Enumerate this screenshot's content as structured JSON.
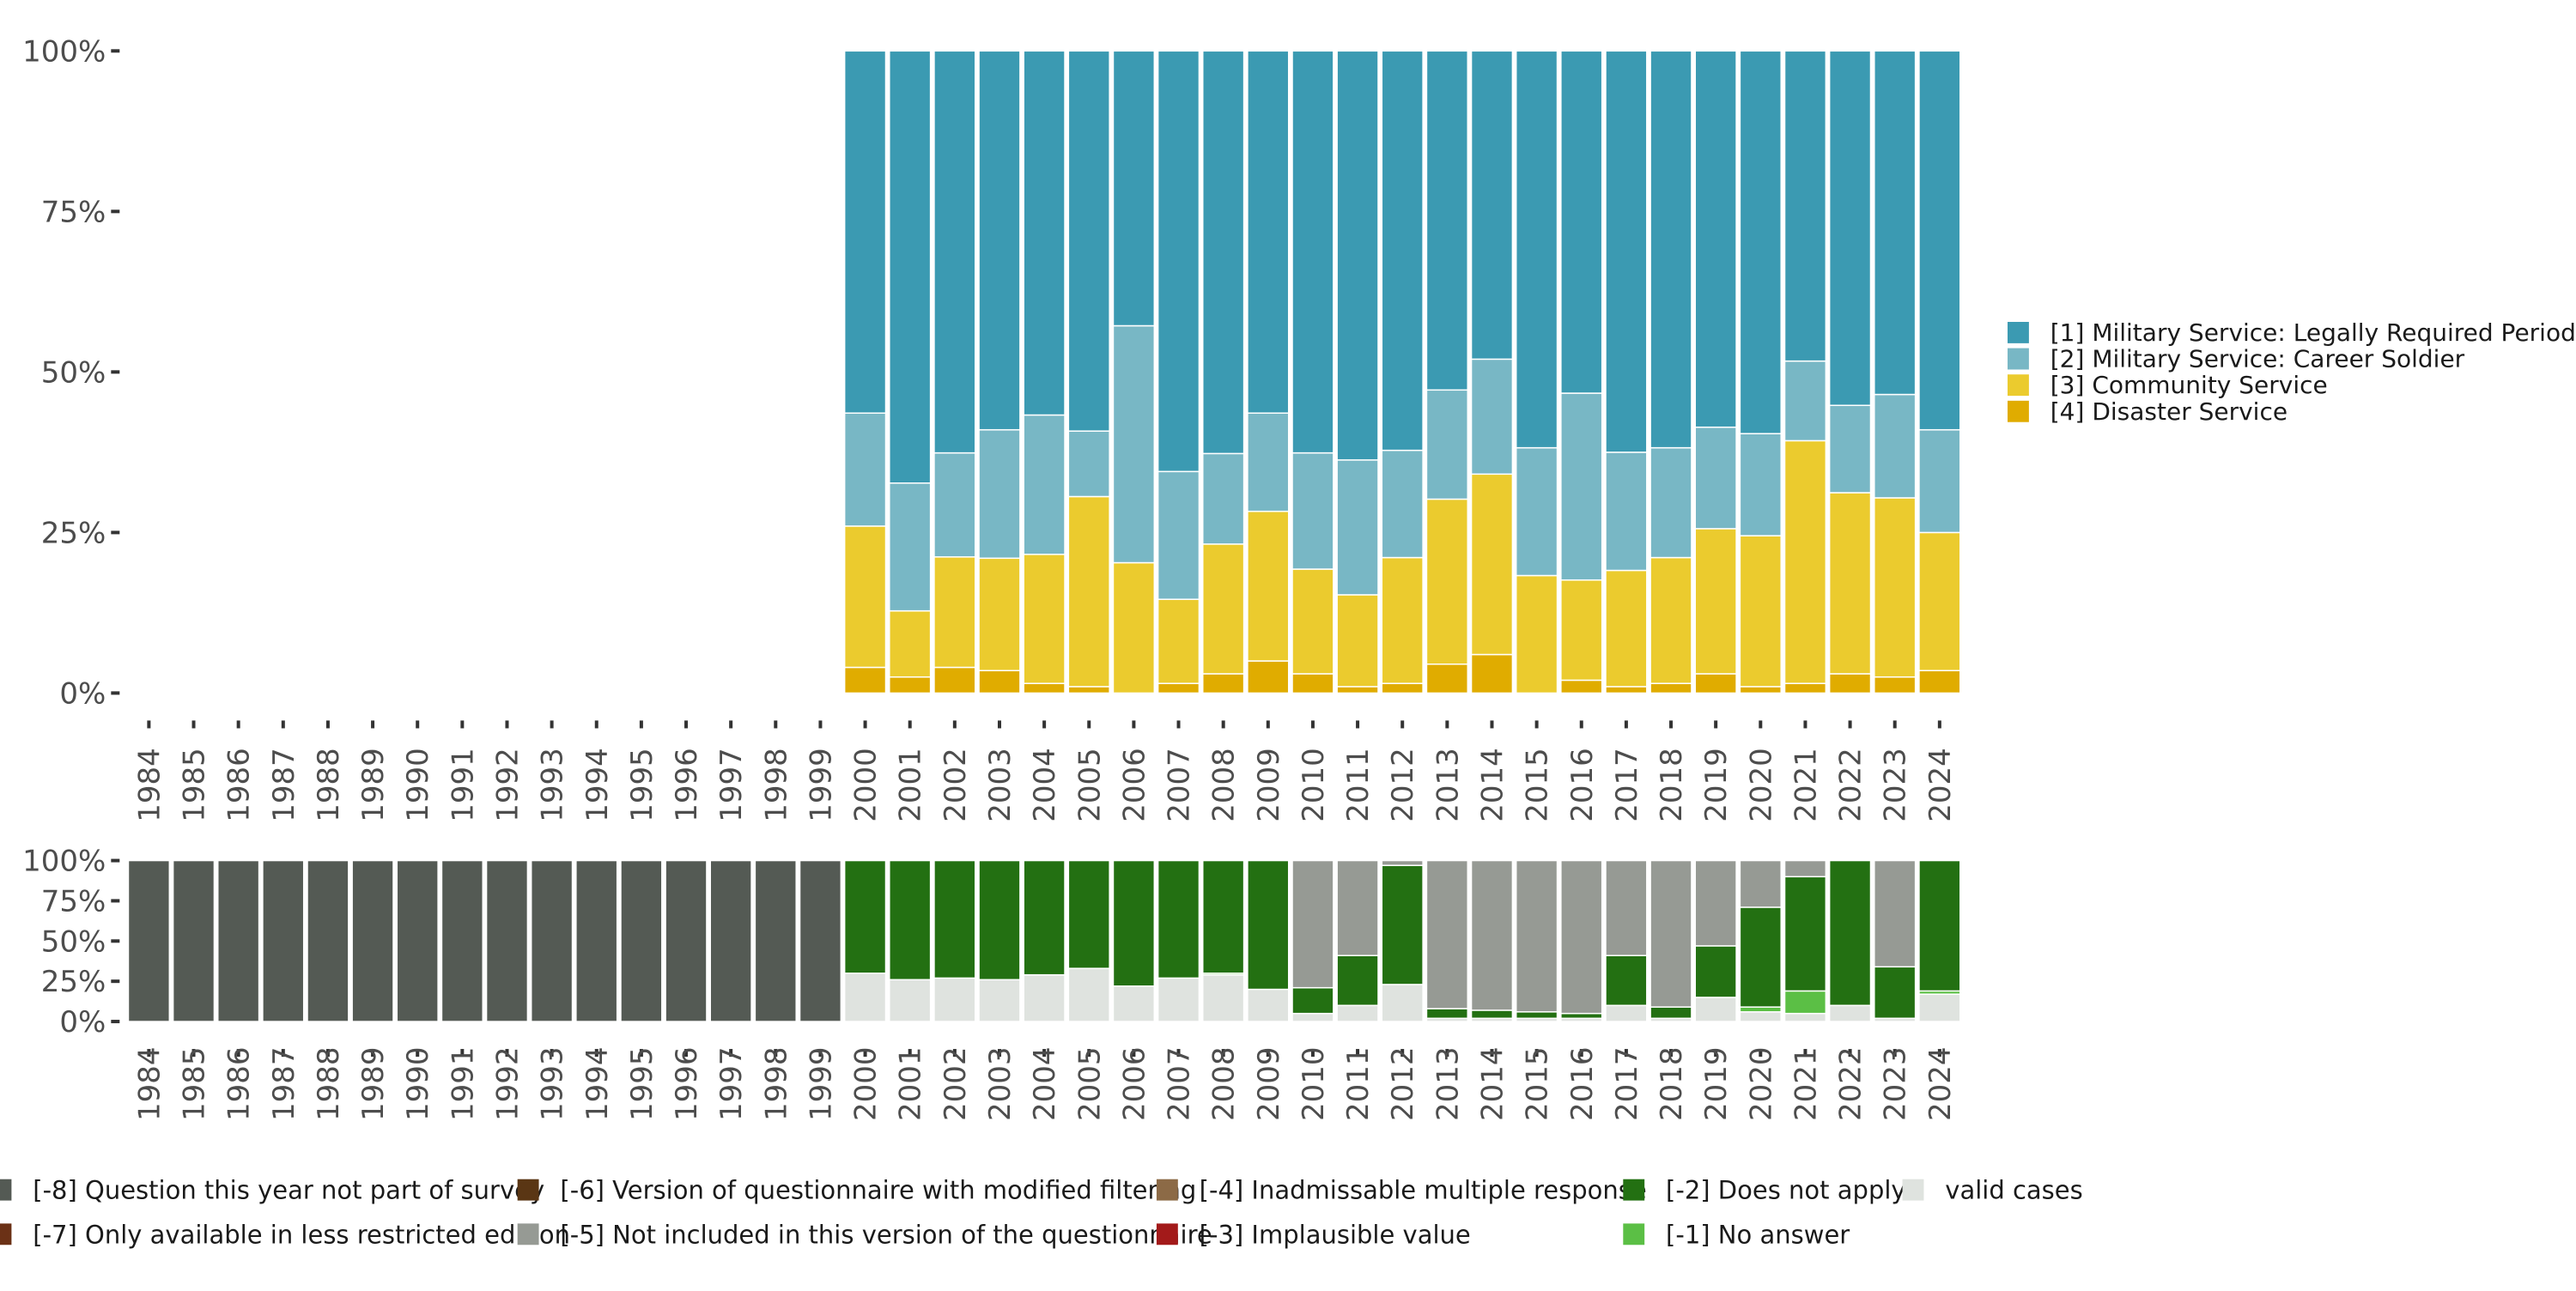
{
  "chart_data": [
    {
      "type": "bar",
      "stacked": true,
      "percent": true,
      "title": "",
      "xlabel": "",
      "ylabel": "",
      "ylim": [
        0,
        100
      ],
      "y_ticks": [
        "0%",
        "25%",
        "50%",
        "75%",
        "100%"
      ],
      "categories": [
        "1984",
        "1985",
        "1986",
        "1987",
        "1988",
        "1989",
        "1990",
        "1991",
        "1992",
        "1993",
        "1994",
        "1995",
        "1996",
        "1997",
        "1998",
        "1999",
        "2000",
        "2001",
        "2002",
        "2003",
        "2004",
        "2005",
        "2006",
        "2007",
        "2008",
        "2009",
        "2010",
        "2011",
        "2012",
        "2013",
        "2014",
        "2015",
        "2016",
        "2017",
        "2018",
        "2019",
        "2020",
        "2021",
        "2022",
        "2023",
        "2024"
      ],
      "legend_position": "right",
      "series": [
        {
          "name": "[4] Disaster Service",
          "color": "#e0ac00",
          "values": [
            null,
            null,
            null,
            null,
            null,
            null,
            null,
            null,
            null,
            null,
            null,
            null,
            null,
            null,
            null,
            null,
            4,
            2.5,
            4,
            3.5,
            1.5,
            1,
            0,
            1.5,
            3,
            5,
            3,
            1,
            1.5,
            4.5,
            6,
            0,
            2,
            1,
            1.5,
            3,
            1,
            1.5,
            3,
            2.5,
            3.5
          ]
        },
        {
          "name": "[3] Community Service",
          "color": "#ebcb2e",
          "values": [
            null,
            null,
            null,
            null,
            null,
            null,
            null,
            null,
            null,
            null,
            null,
            null,
            null,
            null,
            null,
            null,
            22,
            10.3,
            17.2,
            17.5,
            20.1,
            29.6,
            20.3,
            13.1,
            20.2,
            23.3,
            16.3,
            14.3,
            19.6,
            25.7,
            28.1,
            18.3,
            15.6,
            18.1,
            19.6,
            22.6,
            23.5,
            37.8,
            28.2,
            27.9,
            21.5
          ]
        },
        {
          "name": "[2] Military Service: Career Soldier",
          "color": "#78b7c5",
          "values": [
            null,
            null,
            null,
            null,
            null,
            null,
            null,
            null,
            null,
            null,
            null,
            null,
            null,
            null,
            null,
            null,
            17.6,
            19.9,
            16.2,
            20,
            21.7,
            10.2,
            36.9,
            19.9,
            14.1,
            15.3,
            18.1,
            21,
            16.7,
            17,
            17.9,
            19.9,
            29.1,
            18.4,
            17.1,
            15.8,
            15.9,
            12.4,
            13.6,
            16.1,
            16
          ]
        },
        {
          "name": "[1] Military Service: Legally Required Period",
          "color": "#3b9ab2",
          "values": [
            null,
            null,
            null,
            null,
            null,
            null,
            null,
            null,
            null,
            null,
            null,
            null,
            null,
            null,
            null,
            null,
            56.4,
            67.3,
            62.6,
            59,
            56.7,
            59.2,
            42.8,
            65.5,
            62.7,
            56.4,
            62.6,
            63.7,
            62.2,
            52.8,
            48,
            61.8,
            53.3,
            62.5,
            61.8,
            58.6,
            59.6,
            48.3,
            55.2,
            53.5,
            59
          ]
        }
      ]
    },
    {
      "type": "bar",
      "stacked": true,
      "percent": true,
      "title": "",
      "xlabel": "",
      "ylabel": "",
      "ylim": [
        0,
        100
      ],
      "y_ticks": [
        "0%",
        "25%",
        "50%",
        "75%",
        "100%"
      ],
      "categories": [
        "1984",
        "1985",
        "1986",
        "1987",
        "1988",
        "1989",
        "1990",
        "1991",
        "1992",
        "1993",
        "1994",
        "1995",
        "1996",
        "1997",
        "1998",
        "1999",
        "2000",
        "2001",
        "2002",
        "2003",
        "2004",
        "2005",
        "2006",
        "2007",
        "2008",
        "2009",
        "2010",
        "2011",
        "2012",
        "2013",
        "2014",
        "2015",
        "2016",
        "2017",
        "2018",
        "2019",
        "2020",
        "2021",
        "2022",
        "2023",
        "2024"
      ],
      "legend_position": "bottom",
      "legend": [
        {
          "name": "[-8] Question this year not part of survey",
          "color": "#545a54"
        },
        {
          "name": "[-7] Only available in less restricted edition",
          "color": "#6b3116"
        },
        {
          "name": "[-6] Version of questionnaire with modified filtering",
          "color": "#5a3614"
        },
        {
          "name": "[-5] Not included in this version of the questionnaire",
          "color": "#969a94"
        },
        {
          "name": "[-4] Inadmissable multiple response",
          "color": "#8c6a46"
        },
        {
          "name": "[-3] Implausible value",
          "color": "#a31a1a"
        },
        {
          "name": "[-2] Does not apply",
          "color": "#237012"
        },
        {
          "name": "[-1] No answer",
          "color": "#5bbf45"
        },
        {
          "name": "valid cases",
          "color": "#dfe3df"
        }
      ],
      "series": [
        {
          "name": "valid cases",
          "color": "#dfe3df",
          "values": [
            0,
            0,
            0,
            0,
            0,
            0,
            0,
            0,
            0,
            0,
            0,
            0,
            0,
            0,
            0,
            0,
            30,
            26,
            27,
            26,
            29,
            33,
            22,
            27,
            29,
            20,
            5,
            10,
            23,
            2,
            2,
            2,
            2,
            10,
            2,
            15,
            6,
            5,
            10,
            2,
            17
          ]
        },
        {
          "name": "[-1] No answer",
          "color": "#5bbf45",
          "values": [
            0,
            0,
            0,
            0,
            0,
            0,
            0,
            0,
            0,
            0,
            0,
            0,
            0,
            0,
            0,
            0,
            0,
            0,
            0,
            0,
            0,
            0,
            0,
            0,
            1,
            0,
            0,
            0,
            0,
            0,
            0,
            0,
            0,
            0,
            0,
            0,
            3,
            14,
            0,
            0,
            2
          ]
        },
        {
          "name": "[-2] Does not apply",
          "color": "#237012",
          "values": [
            0,
            0,
            0,
            0,
            0,
            0,
            0,
            0,
            0,
            0,
            0,
            0,
            0,
            0,
            0,
            0,
            70,
            74,
            73,
            74,
            71,
            67,
            78,
            73,
            70,
            80,
            16,
            31,
            74,
            6,
            5,
            4,
            3,
            31,
            7,
            32,
            62,
            71,
            90,
            32,
            81
          ]
        },
        {
          "name": "[-5] Not included in this version of the questionnaire",
          "color": "#969a94",
          "values": [
            0,
            0,
            0,
            0,
            0,
            0,
            0,
            0,
            0,
            0,
            0,
            0,
            0,
            0,
            0,
            0,
            0,
            0,
            0,
            0,
            0,
            0,
            0,
            0,
            0,
            0,
            79,
            59,
            3,
            92,
            93,
            94,
            95,
            59,
            91,
            53,
            29,
            10,
            0,
            66,
            0
          ]
        },
        {
          "name": "[-8] Question this year not part of survey",
          "color": "#545a54",
          "values": [
            100,
            100,
            100,
            100,
            100,
            100,
            100,
            100,
            100,
            100,
            100,
            100,
            100,
            100,
            100,
            100,
            0,
            0,
            0,
            0,
            0,
            0,
            0,
            0,
            0,
            0,
            0,
            0,
            0,
            0,
            0,
            0,
            0,
            0,
            0,
            0,
            0,
            0,
            0,
            0,
            0
          ]
        }
      ]
    }
  ]
}
